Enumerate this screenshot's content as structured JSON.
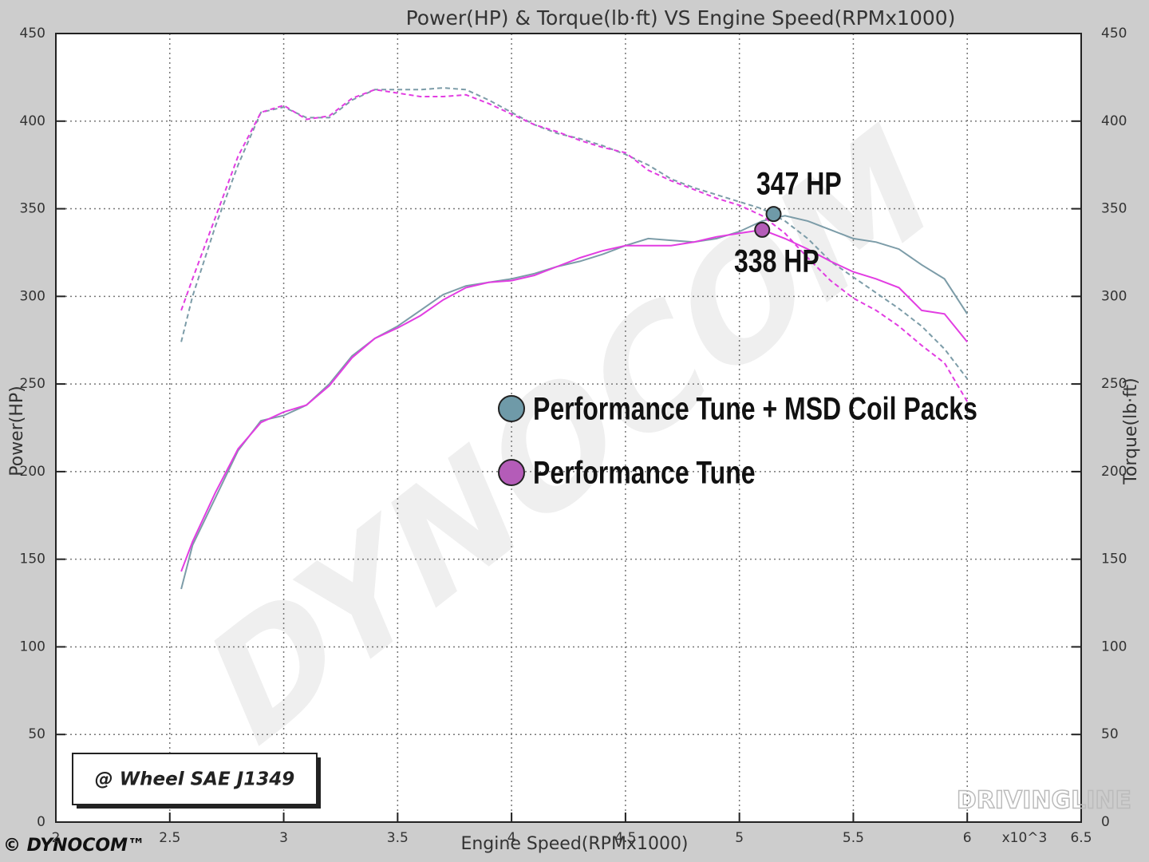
{
  "chart_data": {
    "type": "line",
    "title": "Power(HP) & Torque(lb·ft) VS Engine Speed(RPMx1000)",
    "xlabel": "Engine Speed(RPMx1000)",
    "ylabel": "Power(HP)",
    "y2label": "Torque(lb·ft)",
    "x_multiplier": "x10^3",
    "x": [
      2.55,
      2.6,
      2.7,
      2.8,
      2.9,
      3.0,
      3.1,
      3.2,
      3.3,
      3.4,
      3.5,
      3.6,
      3.7,
      3.8,
      3.9,
      4.0,
      4.1,
      4.2,
      4.3,
      4.4,
      4.5,
      4.6,
      4.7,
      4.8,
      4.9,
      5.0,
      5.1,
      5.2,
      5.3,
      5.4,
      5.5,
      5.6,
      5.7,
      5.8,
      5.9,
      6.0
    ],
    "series": [
      {
        "name": "Performance Tune + MSD Coil Packs",
        "color": "#7c9ca8",
        "legend_color": "#6f9aa8",
        "values": [
          133,
          158,
          185,
          212,
          229,
          232,
          238,
          250,
          266,
          276,
          283,
          292,
          301,
          306,
          308,
          310,
          313,
          317,
          320,
          324,
          329,
          333,
          332,
          331,
          333,
          337,
          343,
          346,
          343,
          338,
          333,
          331,
          327,
          318,
          310,
          290
        ],
        "y2_values": [
          274,
          300,
          340,
          375,
          405,
          408,
          402,
          402,
          412,
          418,
          418,
          418,
          419,
          418,
          412,
          405,
          398,
          393,
          390,
          386,
          381,
          375,
          367,
          362,
          358,
          354,
          350,
          343,
          333,
          320,
          311,
          302,
          293,
          283,
          270,
          253
        ]
      },
      {
        "name": "Performance Tune",
        "color": "#e23de2",
        "legend_color": "#b45cb8",
        "values": [
          143,
          160,
          188,
          213,
          228,
          234,
          238,
          249,
          265,
          276,
          282,
          289,
          298,
          305,
          308,
          309,
          312,
          317,
          322,
          326,
          329,
          329,
          329,
          331,
          334,
          336,
          338,
          333,
          327,
          320,
          314,
          310,
          305,
          292,
          290,
          274
        ],
        "y2_values": [
          292,
          310,
          345,
          380,
          405,
          409,
          401,
          403,
          413,
          418,
          416,
          414,
          414,
          415,
          410,
          404,
          398,
          394,
          389,
          385,
          382,
          372,
          366,
          361,
          356,
          352,
          346,
          336,
          322,
          309,
          299,
          292,
          283,
          272,
          262,
          240
        ]
      }
    ],
    "annotations": [
      {
        "text": "347 HP",
        "x": 5.15,
        "y": 347,
        "color": "#6f9aa8"
      },
      {
        "text": "338 HP",
        "x": 5.1,
        "y": 338,
        "color": "#b45cb8"
      }
    ],
    "xlim": [
      2,
      6.5
    ],
    "xticks": [
      2,
      2.5,
      3,
      3.5,
      4,
      4.5,
      5,
      5.5,
      6,
      6.5
    ],
    "ylim": [
      0,
      450
    ],
    "yticks": [
      0,
      50,
      100,
      150,
      200,
      250,
      300,
      350,
      400,
      450
    ],
    "y2lim": [
      0,
      450
    ],
    "y2ticks": [
      0,
      50,
      100,
      150,
      200,
      250,
      300,
      350,
      400,
      450
    ],
    "grid": true,
    "note_box": "@ Wheel SAE J1349",
    "logo": "© DYNOCOM™",
    "watermark": "DYNOCOM",
    "credit": "DRIVINGLINE"
  }
}
